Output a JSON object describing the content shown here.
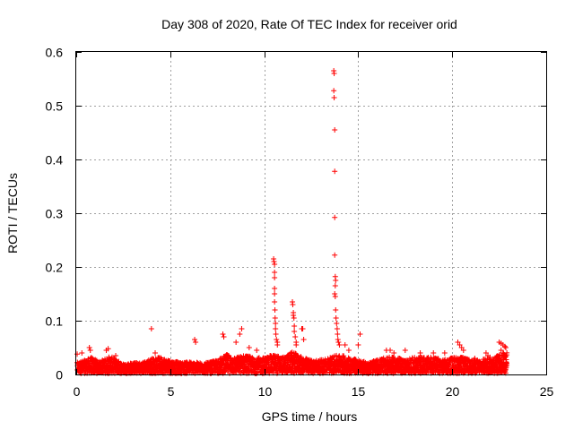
{
  "chart_data": {
    "type": "scatter",
    "title": "Day 308 of 2020, Rate Of TEC Index for receiver orid",
    "xlabel": "GPS time / hours",
    "ylabel": "ROTI / TECUs",
    "xlim": [
      0,
      25
    ],
    "ylim": [
      0,
      0.6
    ],
    "x_ticks": [
      0,
      5,
      10,
      15,
      20,
      25
    ],
    "x_tick_labels": [
      "0",
      "5",
      "10",
      "15",
      "20",
      "25"
    ],
    "y_ticks": [
      0,
      0.1,
      0.2,
      0.3,
      0.4,
      0.5,
      0.6
    ],
    "y_tick_labels": [
      "0",
      "0.1",
      "0.2",
      "0.3",
      "0.4",
      "0.5",
      "0.6"
    ],
    "grid": true,
    "marker": "plus",
    "color": "#ff0000",
    "data_extent_hours": [
      0.05,
      22.9
    ],
    "baseline_envelope": [
      [
        0.0,
        0.02
      ],
      [
        0.5,
        0.025
      ],
      [
        0.8,
        0.03
      ],
      [
        1.2,
        0.022
      ],
      [
        1.8,
        0.032
      ],
      [
        2.5,
        0.018
      ],
      [
        3.0,
        0.02
      ],
      [
        3.5,
        0.02
      ],
      [
        4.0,
        0.028
      ],
      [
        4.5,
        0.03
      ],
      [
        5.0,
        0.025
      ],
      [
        5.5,
        0.02
      ],
      [
        6.0,
        0.022
      ],
      [
        6.5,
        0.02
      ],
      [
        7.0,
        0.02
      ],
      [
        7.5,
        0.025
      ],
      [
        8.0,
        0.035
      ],
      [
        8.5,
        0.03
      ],
      [
        9.0,
        0.035
      ],
      [
        9.5,
        0.028
      ],
      [
        10.0,
        0.03
      ],
      [
        10.5,
        0.035
      ],
      [
        11.0,
        0.03
      ],
      [
        11.5,
        0.04
      ],
      [
        12.0,
        0.03
      ],
      [
        12.5,
        0.025
      ],
      [
        13.0,
        0.025
      ],
      [
        13.5,
        0.03
      ],
      [
        14.0,
        0.035
      ],
      [
        14.5,
        0.03
      ],
      [
        15.0,
        0.025
      ],
      [
        15.5,
        0.02
      ],
      [
        16.0,
        0.025
      ],
      [
        16.5,
        0.03
      ],
      [
        17.0,
        0.03
      ],
      [
        17.5,
        0.025
      ],
      [
        18.0,
        0.03
      ],
      [
        18.5,
        0.03
      ],
      [
        19.0,
        0.03
      ],
      [
        19.5,
        0.025
      ],
      [
        20.0,
        0.03
      ],
      [
        20.5,
        0.03
      ],
      [
        21.0,
        0.025
      ],
      [
        21.5,
        0.025
      ],
      [
        22.0,
        0.03
      ],
      [
        22.5,
        0.035
      ],
      [
        22.9,
        0.04
      ]
    ],
    "outliers": [
      [
        0.05,
        0.038
      ],
      [
        0.3,
        0.04
      ],
      [
        0.7,
        0.05
      ],
      [
        0.75,
        0.045
      ],
      [
        1.6,
        0.045
      ],
      [
        1.7,
        0.048
      ],
      [
        2.1,
        0.035
      ],
      [
        4.0,
        0.085
      ],
      [
        4.2,
        0.04
      ],
      [
        6.3,
        0.065
      ],
      [
        6.35,
        0.06
      ],
      [
        7.8,
        0.075
      ],
      [
        7.85,
        0.07
      ],
      [
        8.5,
        0.06
      ],
      [
        8.7,
        0.075
      ],
      [
        8.8,
        0.085
      ],
      [
        9.2,
        0.05
      ],
      [
        9.6,
        0.045
      ],
      [
        10.5,
        0.215
      ],
      [
        10.52,
        0.21
      ],
      [
        10.55,
        0.205
      ],
      [
        10.55,
        0.19
      ],
      [
        10.55,
        0.18
      ],
      [
        10.55,
        0.16
      ],
      [
        10.55,
        0.15
      ],
      [
        10.55,
        0.135
      ],
      [
        10.57,
        0.12
      ],
      [
        10.58,
        0.105
      ],
      [
        10.6,
        0.095
      ],
      [
        10.6,
        0.085
      ],
      [
        10.62,
        0.075
      ],
      [
        10.65,
        0.065
      ],
      [
        10.7,
        0.06
      ],
      [
        10.7,
        0.055
      ],
      [
        11.5,
        0.135
      ],
      [
        11.52,
        0.13
      ],
      [
        11.55,
        0.115
      ],
      [
        11.55,
        0.11
      ],
      [
        11.58,
        0.105
      ],
      [
        11.6,
        0.09
      ],
      [
        11.6,
        0.08
      ],
      [
        11.65,
        0.07
      ],
      [
        11.7,
        0.06
      ],
      [
        11.7,
        0.055
      ],
      [
        12.0,
        0.085
      ],
      [
        12.05,
        0.085
      ],
      [
        12.1,
        0.065
      ],
      [
        13.7,
        0.565
      ],
      [
        13.72,
        0.56
      ],
      [
        13.7,
        0.528
      ],
      [
        13.72,
        0.515
      ],
      [
        13.75,
        0.455
      ],
      [
        13.75,
        0.378
      ],
      [
        13.75,
        0.292
      ],
      [
        13.75,
        0.222
      ],
      [
        13.78,
        0.182
      ],
      [
        13.8,
        0.175
      ],
      [
        13.78,
        0.165
      ],
      [
        13.75,
        0.15
      ],
      [
        13.78,
        0.145
      ],
      [
        13.8,
        0.12
      ],
      [
        13.82,
        0.105
      ],
      [
        13.85,
        0.095
      ],
      [
        13.88,
        0.085
      ],
      [
        13.9,
        0.075
      ],
      [
        13.92,
        0.065
      ],
      [
        13.95,
        0.06
      ],
      [
        14.0,
        0.055
      ],
      [
        14.3,
        0.055
      ],
      [
        14.5,
        0.045
      ],
      [
        15.1,
        0.075
      ],
      [
        15.0,
        0.055
      ],
      [
        16.5,
        0.045
      ],
      [
        16.7,
        0.045
      ],
      [
        16.9,
        0.04
      ],
      [
        17.5,
        0.045
      ],
      [
        18.3,
        0.04
      ],
      [
        19.0,
        0.04
      ],
      [
        19.6,
        0.04
      ],
      [
        20.3,
        0.06
      ],
      [
        20.4,
        0.055
      ],
      [
        20.5,
        0.05
      ],
      [
        20.6,
        0.045
      ],
      [
        21.2,
        0.03
      ],
      [
        21.8,
        0.04
      ],
      [
        21.9,
        0.035
      ],
      [
        22.5,
        0.06
      ],
      [
        22.6,
        0.058
      ],
      [
        22.7,
        0.055
      ],
      [
        22.8,
        0.052
      ],
      [
        22.85,
        0.05
      ],
      [
        22.6,
        0.045
      ],
      [
        22.7,
        0.04
      ],
      [
        22.8,
        0.035
      ],
      [
        22.9,
        0.02
      ]
    ]
  }
}
